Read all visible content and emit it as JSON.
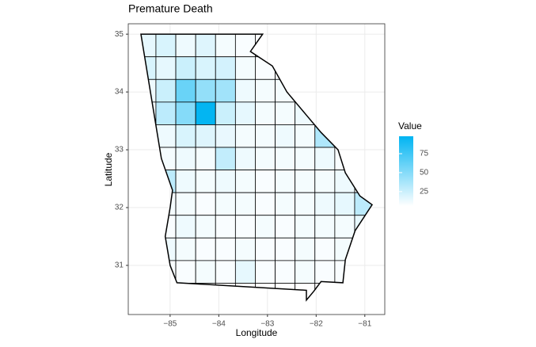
{
  "chart_data": {
    "type": "map",
    "title": "Premature Death",
    "xlabel": "Longitude",
    "ylabel": "Latitude",
    "xlim": [
      -85.86,
      -80.59
    ],
    "ylim": [
      30.15,
      35.18
    ],
    "xticks": [
      {
        "value": -85,
        "label": "−85"
      },
      {
        "value": -84,
        "label": "−84"
      },
      {
        "value": -83,
        "label": "−83"
      },
      {
        "value": -82,
        "label": "−82"
      },
      {
        "value": -81,
        "label": "−81"
      }
    ],
    "yticks": [
      31,
      32,
      33,
      34,
      35
    ],
    "grid": true,
    "legend_title": "Value",
    "colorbar_lim": [
      6,
      98
    ],
    "colorbar_ticks": [
      25,
      50,
      75
    ],
    "low_color": "#ffffff",
    "high_color": "#00b4f2",
    "border_color": "#000000",
    "grid_cols": 12,
    "grid_rows": 12,
    "values": [
      15,
      20,
      12,
      18,
      10,
      8,
      8,
      6,
      6,
      6,
      6,
      6,
      20,
      15,
      25,
      20,
      22,
      10,
      8,
      8,
      6,
      6,
      6,
      6,
      12,
      25,
      60,
      45,
      40,
      12,
      10,
      10,
      8,
      6,
      6,
      6,
      10,
      30,
      50,
      97,
      25,
      15,
      10,
      10,
      12,
      8,
      6,
      6,
      10,
      12,
      20,
      18,
      14,
      10,
      10,
      12,
      10,
      35,
      8,
      6,
      8,
      10,
      12,
      10,
      28,
      12,
      10,
      10,
      10,
      12,
      8,
      6,
      8,
      30,
      12,
      10,
      12,
      10,
      8,
      10,
      10,
      10,
      12,
      8,
      8,
      10,
      10,
      8,
      10,
      10,
      8,
      10,
      10,
      12,
      15,
      30,
      8,
      8,
      12,
      10,
      8,
      8,
      10,
      8,
      10,
      10,
      10,
      15,
      8,
      12,
      10,
      8,
      8,
      10,
      8,
      8,
      10,
      8,
      10,
      12,
      8,
      8,
      8,
      10,
      8,
      15,
      8,
      8,
      10,
      8,
      8,
      10,
      6,
      6,
      6,
      6,
      6,
      6,
      6,
      6,
      6,
      6,
      6,
      6
    ]
  }
}
